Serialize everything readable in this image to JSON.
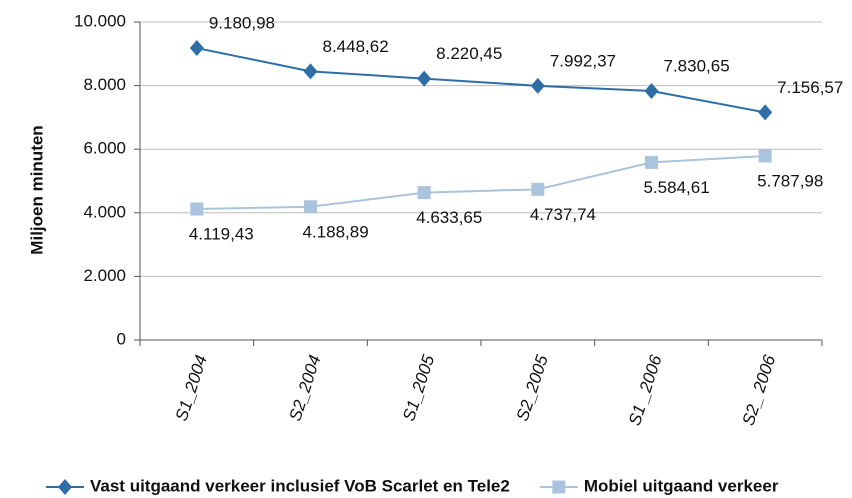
{
  "chart_data": {
    "type": "line",
    "y_label": "Miljoen minuten",
    "categories": [
      "S1_2004",
      "S2_2004",
      "S1_2005",
      "S2_2005",
      "S1 _2006",
      "S2_ 2006"
    ],
    "series": [
      {
        "name": "Vast uitgaand verkeer inclusief VoB Scarlet en Tele2",
        "color": "#2e6ea6",
        "marker": "diamond",
        "values": [
          9180.98,
          8448.62,
          8220.45,
          7992.37,
          7830.65,
          7156.57
        ],
        "value_labels": [
          "9.180,98",
          "8.448,62",
          "8.220,45",
          "7.992,37",
          "7.830,65",
          "7.156,57"
        ]
      },
      {
        "name": "Mobiel uitgaand verkeer",
        "color": "#a9c4dc",
        "marker": "square",
        "values": [
          4119.43,
          4188.89,
          4633.65,
          4737.74,
          5584.61,
          5787.98
        ],
        "value_labels": [
          "4.119,43",
          "4.188,89",
          "4.633,65",
          "4.737,74",
          "5.584,61",
          "5.787,98"
        ]
      }
    ],
    "ylim": [
      0,
      10000
    ],
    "yticks": [
      0,
      {
        "value": 2000,
        "label": "2.000"
      },
      {
        "value": 4000,
        "label": "4.000"
      },
      {
        "value": 6000,
        "label": "6.000"
      },
      {
        "value": 8000,
        "label": "8.000"
      },
      {
        "value": 10000,
        "label": "10.000"
      }
    ],
    "grid": true,
    "legend": "bottom"
  }
}
